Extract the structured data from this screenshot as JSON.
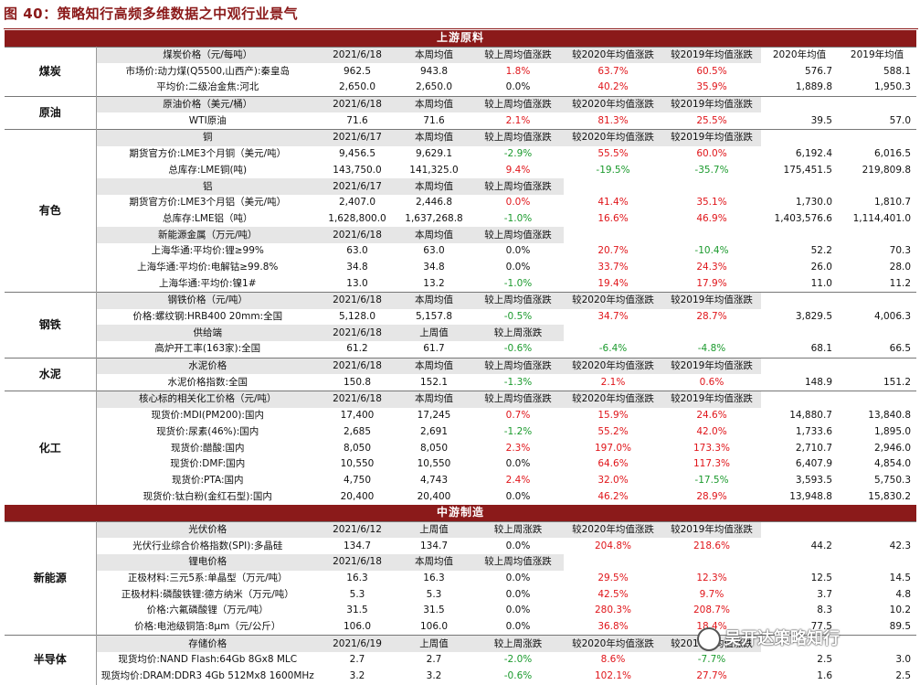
{
  "title": "图 40：策略知行高频多维数据之中观行业景气",
  "watermark": "吴开达策略知行",
  "sections": [
    {
      "type": "banner",
      "text": "上游原料"
    },
    {
      "type": "group",
      "cat": "煤炭",
      "rows": [
        {
          "kind": "sub",
          "cells": [
            "煤炭价格（元/每吨）",
            "2021/6/18",
            "本周均值",
            "较上周均值涨跌",
            "较2020年均值涨跌",
            "较2019年均值涨跌",
            "2020年均值",
            "2019年均值"
          ]
        },
        {
          "kind": "data",
          "cells": [
            "市场价:动力煤(Q5500,山西产):秦皇岛",
            "962.5",
            "943.8",
            "1.8%",
            "63.7%",
            "60.5%",
            "576.7",
            "588.1"
          ],
          "colors": [
            "",
            "",
            "",
            "red",
            "red",
            "red",
            "",
            ""
          ]
        },
        {
          "kind": "data",
          "cells": [
            "平均价:二级冶金焦:河北",
            "2,650.0",
            "2,650.0",
            "0.0%",
            "40.2%",
            "35.9%",
            "1,889.8",
            "1,950.3"
          ],
          "colors": [
            "",
            "",
            "",
            "",
            "red",
            "red",
            "",
            ""
          ]
        }
      ]
    },
    {
      "type": "group",
      "cat": "原油",
      "rows": [
        {
          "kind": "sub",
          "cells": [
            "原油价格（美元/桶）",
            "2021/6/18",
            "本周均值",
            "较上周均值涨跌",
            "较2020年均值涨跌",
            "较2019年均值涨跌",
            "",
            ""
          ]
        },
        {
          "kind": "data",
          "cells": [
            "WTI原油",
            "71.6",
            "71.6",
            "2.1%",
            "81.3%",
            "25.5%",
            "39.5",
            "57.0"
          ],
          "colors": [
            "",
            "",
            "",
            "red",
            "red",
            "red",
            "",
            ""
          ]
        }
      ]
    },
    {
      "type": "group",
      "cat": "有色",
      "rows": [
        {
          "kind": "sub",
          "cells": [
            "铜",
            "2021/6/17",
            "本周均值",
            "较上周均值涨跌",
            "较2020年均值涨跌",
            "较2019年均值涨跌",
            "",
            ""
          ]
        },
        {
          "kind": "data",
          "cells": [
            "期货官方价:LME3个月铜（美元/吨）",
            "9,456.5",
            "9,629.1",
            "-2.9%",
            "55.5%",
            "60.0%",
            "6,192.4",
            "6,016.5"
          ],
          "colors": [
            "",
            "",
            "",
            "green",
            "red",
            "red",
            "",
            ""
          ]
        },
        {
          "kind": "data",
          "cells": [
            "总库存:LME铜(吨)",
            "143,750.0",
            "141,325.0",
            "9.4%",
            "-19.5%",
            "-35.7%",
            "175,451.5",
            "219,809.8"
          ],
          "colors": [
            "",
            "",
            "",
            "red",
            "green",
            "green",
            "",
            ""
          ]
        },
        {
          "kind": "sub",
          "cells": [
            "铝",
            "2021/6/17",
            "本周均值",
            "较上周均值涨跌",
            "",
            "",
            "",
            ""
          ]
        },
        {
          "kind": "data",
          "cells": [
            "期货官方价:LME3个月铝（美元/吨）",
            "2,407.0",
            "2,446.8",
            "0.0%",
            "41.4%",
            "35.1%",
            "1,730.0",
            "1,810.7"
          ],
          "colors": [
            "",
            "",
            "",
            "red",
            "red",
            "red",
            "",
            ""
          ]
        },
        {
          "kind": "data",
          "cells": [
            "总库存:LME铝（吨）",
            "1,628,800.0",
            "1,637,268.8",
            "-1.0%",
            "16.6%",
            "46.9%",
            "1,403,576.6",
            "1,114,401.0"
          ],
          "colors": [
            "",
            "",
            "",
            "green",
            "red",
            "red",
            "",
            ""
          ]
        },
        {
          "kind": "sub",
          "cells": [
            "新能源金属（万元/吨）",
            "2021/6/18",
            "本周均值",
            "较上周均值涨跌",
            "",
            "",
            "",
            ""
          ]
        },
        {
          "kind": "data",
          "cells": [
            "上海华通:平均价:锂≥99%",
            "63.0",
            "63.0",
            "0.0%",
            "20.7%",
            "-10.4%",
            "52.2",
            "70.3"
          ],
          "colors": [
            "",
            "",
            "",
            "",
            "red",
            "green",
            "",
            ""
          ]
        },
        {
          "kind": "data",
          "cells": [
            "上海华通:平均价:电解钴≥99.8%",
            "34.8",
            "34.8",
            "0.0%",
            "33.7%",
            "24.3%",
            "26.0",
            "28.0"
          ],
          "colors": [
            "",
            "",
            "",
            "",
            "red",
            "red",
            "",
            ""
          ]
        },
        {
          "kind": "data",
          "cells": [
            "上海华通:平均价:镍1#",
            "13.0",
            "13.2",
            "-1.0%",
            "19.4%",
            "17.9%",
            "11.0",
            "11.2"
          ],
          "colors": [
            "",
            "",
            "",
            "green",
            "red",
            "red",
            "",
            ""
          ]
        }
      ]
    },
    {
      "type": "group",
      "cat": "钢铁",
      "rows": [
        {
          "kind": "sub",
          "cells": [
            "钢铁价格（元/吨）",
            "2021/6/18",
            "本周均值",
            "较上周均值涨跌",
            "较2020年均值涨跌",
            "较2019年均值涨跌",
            "",
            ""
          ]
        },
        {
          "kind": "data",
          "cells": [
            "价格:螺纹钢:HRB400 20mm:全国",
            "5,128.0",
            "5,157.8",
            "-0.5%",
            "34.7%",
            "28.7%",
            "3,829.5",
            "4,006.3"
          ],
          "colors": [
            "",
            "",
            "",
            "green",
            "red",
            "red",
            "",
            ""
          ]
        },
        {
          "kind": "sub",
          "cells": [
            "供给端",
            "2021/6/18",
            "上周值",
            "较上周涨跌",
            "",
            "",
            "",
            ""
          ]
        },
        {
          "kind": "data",
          "cells": [
            "高炉开工率(163家):全国",
            "61.2",
            "61.7",
            "-0.6%",
            "-6.4%",
            "-4.8%",
            "68.1",
            "66.5"
          ],
          "colors": [
            "",
            "",
            "",
            "green",
            "green",
            "green",
            "",
            ""
          ]
        }
      ]
    },
    {
      "type": "group",
      "cat": "水泥",
      "rows": [
        {
          "kind": "sub",
          "cells": [
            "水泥价格",
            "2021/6/18",
            "本周均值",
            "较上周均值涨跌",
            "较2020年均值涨跌",
            "较2019年均值涨跌",
            "",
            ""
          ]
        },
        {
          "kind": "data",
          "cells": [
            "水泥价格指数:全国",
            "150.8",
            "152.1",
            "-1.3%",
            "2.1%",
            "0.6%",
            "148.9",
            "151.2"
          ],
          "colors": [
            "",
            "",
            "",
            "green",
            "red",
            "red",
            "",
            ""
          ]
        }
      ]
    },
    {
      "type": "group",
      "cat": "化工",
      "rows": [
        {
          "kind": "sub",
          "cells": [
            "核心标的相关化工价格（元/吨）",
            "2021/6/18",
            "本周均值",
            "较上周均值涨跌",
            "较2020年均值涨跌",
            "较2019年均值涨跌",
            "",
            ""
          ]
        },
        {
          "kind": "data",
          "cells": [
            "现货价:MDI(PM200):国内",
            "17,400",
            "17,245",
            "0.7%",
            "15.9%",
            "24.6%",
            "14,880.7",
            "13,840.8"
          ],
          "colors": [
            "",
            "",
            "",
            "red",
            "red",
            "red",
            "",
            ""
          ]
        },
        {
          "kind": "data",
          "cells": [
            "现货价:尿素(46%):国内",
            "2,685",
            "2,691",
            "-1.2%",
            "55.2%",
            "42.0%",
            "1,733.6",
            "1,895.0"
          ],
          "colors": [
            "",
            "",
            "",
            "green",
            "red",
            "red",
            "",
            ""
          ]
        },
        {
          "kind": "data",
          "cells": [
            "现货价:醋酸:国内",
            "8,050",
            "8,050",
            "2.3%",
            "197.0%",
            "173.3%",
            "2,710.7",
            "2,946.0"
          ],
          "colors": [
            "",
            "",
            "",
            "red",
            "red",
            "red",
            "",
            ""
          ]
        },
        {
          "kind": "data",
          "cells": [
            "现货价:DMF:国内",
            "10,550",
            "10,550",
            "0.0%",
            "64.6%",
            "117.3%",
            "6,407.9",
            "4,854.0"
          ],
          "colors": [
            "",
            "",
            "",
            "",
            "red",
            "red",
            "",
            ""
          ]
        },
        {
          "kind": "data",
          "cells": [
            "现货价:PTA:国内",
            "4,750",
            "4,743",
            "2.4%",
            "32.0%",
            "-17.5%",
            "3,593.5",
            "5,750.3"
          ],
          "colors": [
            "",
            "",
            "",
            "red",
            "red",
            "green",
            "",
            ""
          ]
        },
        {
          "kind": "data",
          "cells": [
            "现货价:钛白粉(金红石型):国内",
            "20,400",
            "20,400",
            "0.0%",
            "46.2%",
            "28.9%",
            "13,948.8",
            "15,830.2"
          ],
          "colors": [
            "",
            "",
            "",
            "",
            "red",
            "red",
            "",
            ""
          ]
        }
      ]
    },
    {
      "type": "banner",
      "text": "中游制造"
    },
    {
      "type": "group",
      "cat": "新能源",
      "rows": [
        {
          "kind": "sub",
          "cells": [
            "光伏价格",
            "2021/6/12",
            "上周值",
            "较上周涨跌",
            "较2020年均值涨跌",
            "较2019年均值涨跌",
            "",
            ""
          ]
        },
        {
          "kind": "data",
          "cells": [
            "光伏行业综合价格指数(SPI):多晶硅",
            "134.7",
            "134.7",
            "0.0%",
            "204.8%",
            "218.6%",
            "44.2",
            "42.3"
          ],
          "colors": [
            "",
            "",
            "",
            "",
            "red",
            "red",
            "",
            ""
          ]
        },
        {
          "kind": "sub",
          "cells": [
            "锂电价格",
            "2021/6/18",
            "本周均值",
            "较上周均值涨跌",
            "",
            "",
            "",
            ""
          ]
        },
        {
          "kind": "data",
          "cells": [
            "正极材料:三元5系:单晶型（万元/吨）",
            "16.3",
            "16.3",
            "0.0%",
            "29.5%",
            "12.3%",
            "12.5",
            "14.5"
          ],
          "colors": [
            "",
            "",
            "",
            "",
            "red",
            "red",
            "",
            ""
          ]
        },
        {
          "kind": "data",
          "cells": [
            "正极材料:磷酸铁锂:德方纳米（万元/吨）",
            "5.3",
            "5.3",
            "0.0%",
            "42.5%",
            "9.7%",
            "3.7",
            "4.8"
          ],
          "colors": [
            "",
            "",
            "",
            "",
            "red",
            "red",
            "",
            ""
          ]
        },
        {
          "kind": "data",
          "cells": [
            "价格:六氟磷酸锂（万元/吨）",
            "31.5",
            "31.5",
            "0.0%",
            "280.3%",
            "208.7%",
            "8.3",
            "10.2"
          ],
          "colors": [
            "",
            "",
            "",
            "",
            "red",
            "red",
            "",
            ""
          ]
        },
        {
          "kind": "data",
          "cells": [
            "价格:电池级铜箔:8μm（元/公斤）",
            "106.0",
            "106.0",
            "0.0%",
            "36.8%",
            "18.4%",
            "77.5",
            "89.5"
          ],
          "colors": [
            "",
            "",
            "",
            "",
            "red",
            "red",
            "",
            ""
          ]
        }
      ]
    },
    {
      "type": "group",
      "cat": "半导体",
      "rows": [
        {
          "kind": "sub",
          "cells": [
            "存储价格",
            "2021/6/19",
            "上周值",
            "较上周涨跌",
            "较2020年均值涨跌",
            "较2019年均值涨跌",
            "",
            ""
          ]
        },
        {
          "kind": "data",
          "cells": [
            "现货均价:NAND Flash:64Gb 8Gx8 MLC",
            "2.7",
            "2.7",
            "-2.0%",
            "8.6%",
            "-7.7%",
            "2.5",
            "3.0"
          ],
          "colors": [
            "",
            "",
            "",
            "green",
            "red",
            "green",
            "",
            ""
          ]
        },
        {
          "kind": "data",
          "cells": [
            "现货均价:DRAM:DDR3 4Gb 512Mx8 1600MHz",
            "3.2",
            "3.2",
            "-0.6%",
            "102.1%",
            "27.7%",
            "1.6",
            "2.5"
          ],
          "colors": [
            "",
            "",
            "",
            "green",
            "red",
            "red",
            "",
            ""
          ]
        }
      ]
    }
  ]
}
